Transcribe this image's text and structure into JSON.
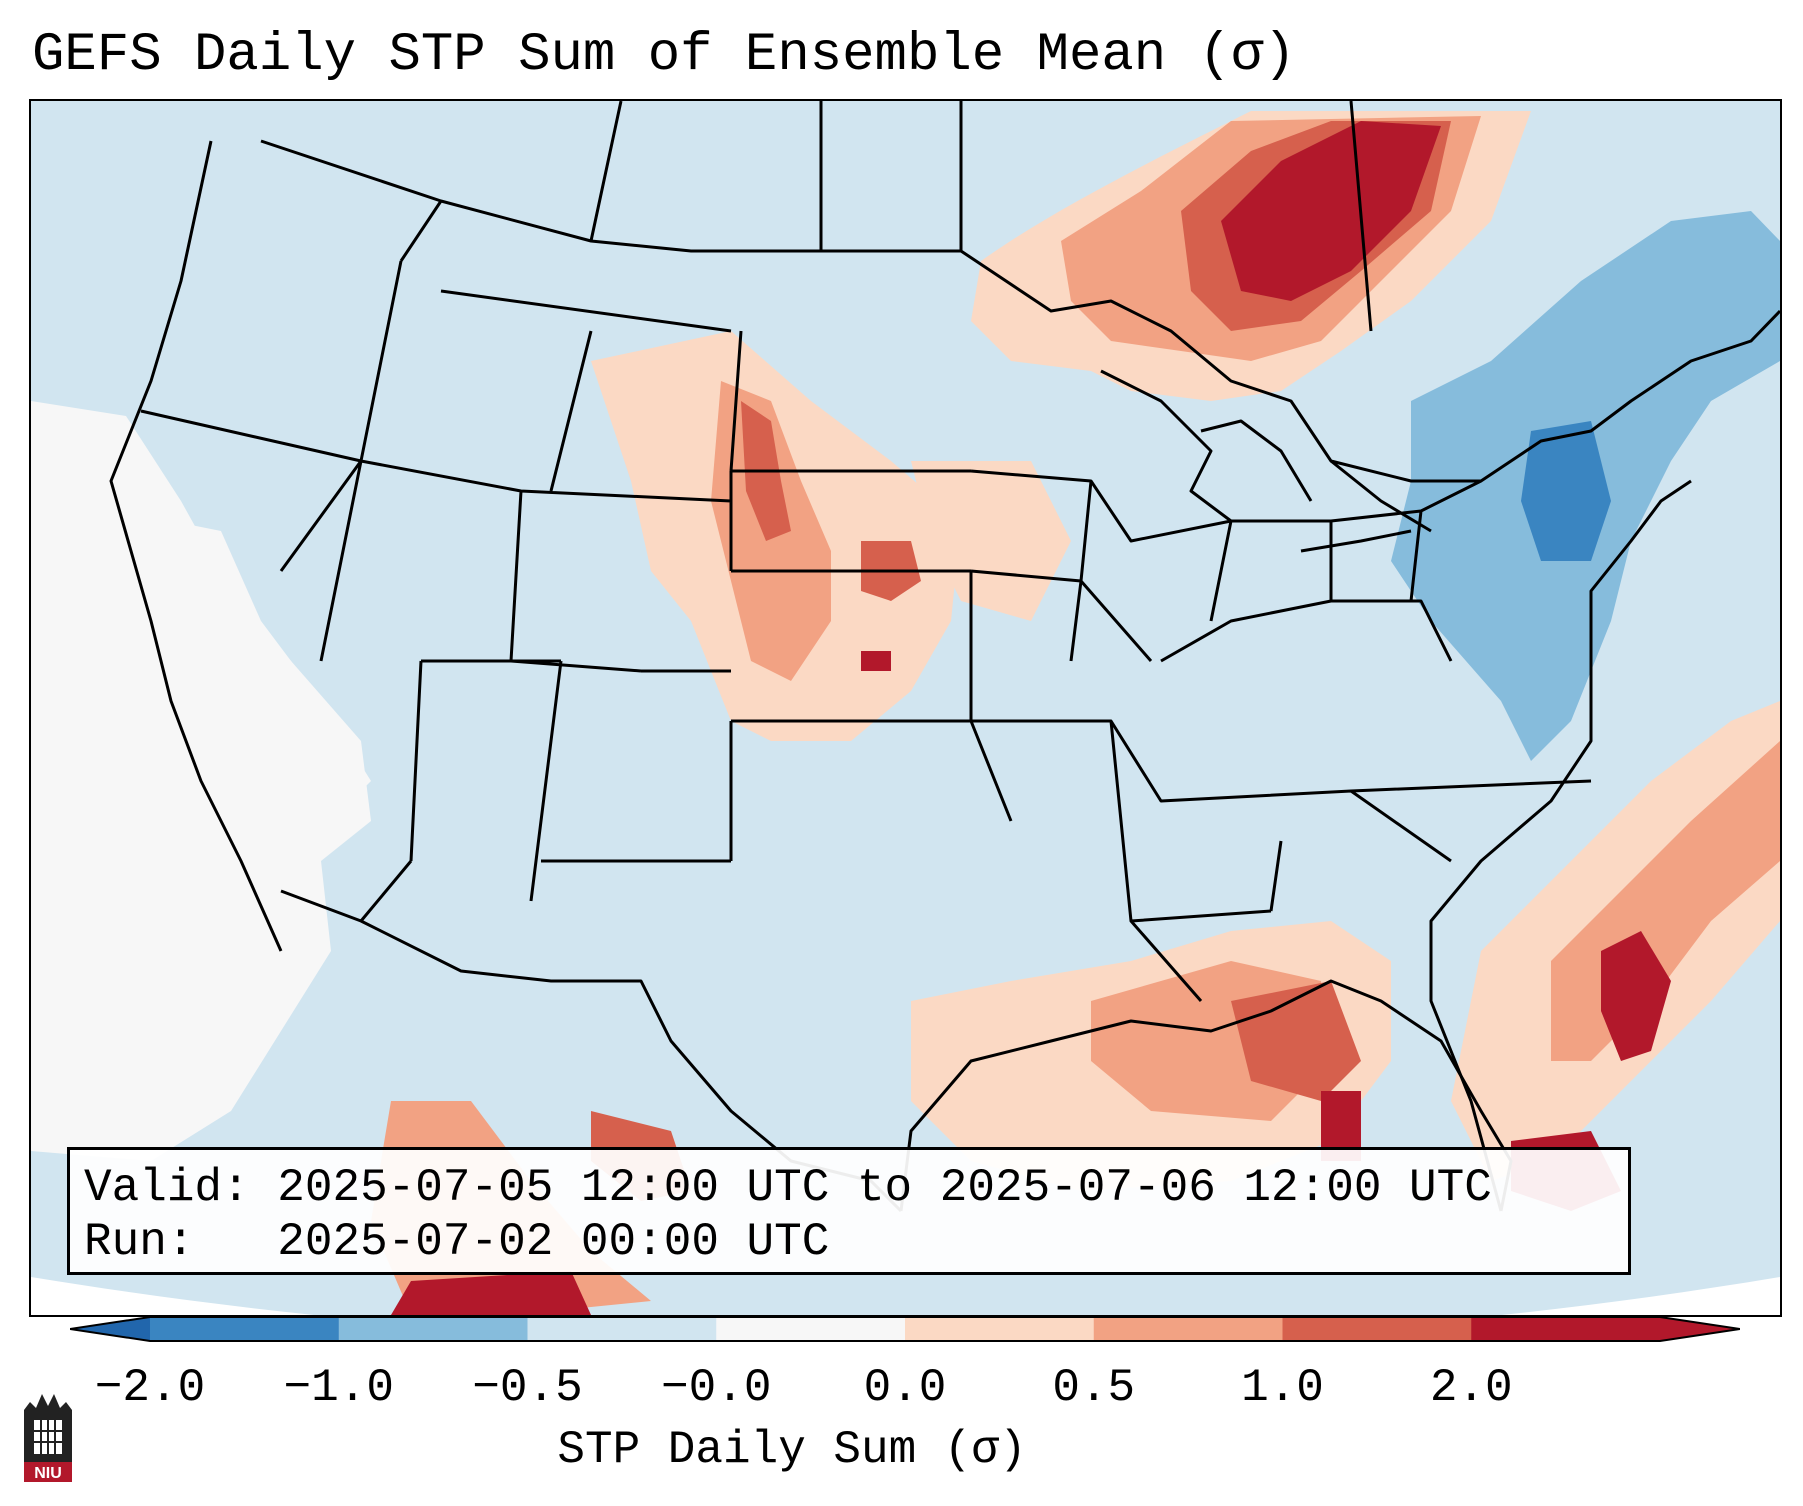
{
  "title": "GEFS Daily STP Sum of Ensemble Mean (σ)",
  "info": {
    "valid_label": "Valid:",
    "valid_value": "2025-07-05 12:00 UTC to 2025-07-06 12:00 UTC",
    "run_label": "Run:",
    "run_value": "2025-07-02 00:00 UTC"
  },
  "colorbar": {
    "label": "STP Daily Sum (σ)",
    "ticks": [
      "−2.0",
      "−1.0",
      "−0.5",
      "−0.0",
      "0.0",
      "0.5",
      "1.0",
      "2.0"
    ],
    "colors": [
      "#3a85c1",
      "#86bcdc",
      "#d1e5f0",
      "#f7f7f7",
      "#fbd9c4",
      "#f2a283",
      "#d6604d",
      "#b2182b"
    ],
    "extend_low_color": "#2166ac",
    "extend_high_color": "#b2182b"
  },
  "map": {
    "background_color": "#d1e5f0",
    "offmap_color": "#ffffff",
    "border_color": "#000000"
  },
  "logo": {
    "text": "NIU",
    "color": "#b2182b"
  }
}
